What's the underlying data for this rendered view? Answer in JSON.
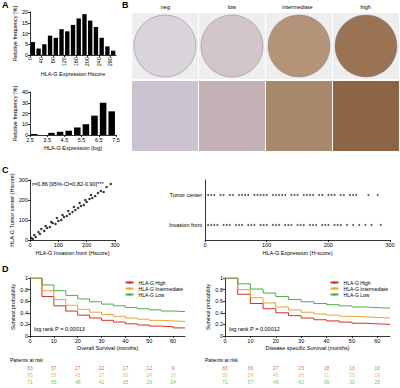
{
  "panel_labels": [
    "A",
    "B",
    "C",
    "D"
  ],
  "image_panel": {
    "labels": [
      "neg",
      "low",
      "intermediate",
      "high"
    ]
  },
  "chart_data": [
    {
      "type": "histogram",
      "xlabel": "HLA-G Expression Hscore",
      "ylabel": "Relative frequency [%]",
      "bins": [
        0,
        20,
        40,
        60,
        80,
        100,
        120,
        140,
        160,
        180,
        200,
        220,
        240,
        260,
        280,
        300
      ],
      "counts": [
        6,
        3,
        5,
        9,
        8,
        12,
        11,
        14,
        17,
        19,
        16,
        13,
        8,
        4,
        2
      ],
      "color": "#000000",
      "xlim": [
        0,
        300
      ],
      "xticks": [
        0,
        40,
        80,
        120,
        160,
        200,
        240,
        280
      ],
      "ylim": [
        0,
        20
      ],
      "yticks": [
        0,
        5,
        10,
        15,
        20
      ],
      "grid": false
    },
    {
      "type": "histogram",
      "xlabel": "HLA-G Expression (log)",
      "ylabel": "Relative frequency [%]",
      "bins": [
        2.5,
        3,
        3.5,
        4,
        4.5,
        5,
        5.5,
        6,
        6.5,
        7,
        7.5
      ],
      "counts": [
        1,
        0,
        2,
        3,
        4,
        7,
        10,
        18,
        30,
        22
      ],
      "color": "#000000",
      "xlim": [
        2.5,
        7.5
      ],
      "xticks": [
        2.5,
        3.5,
        4.5,
        5.5,
        6.5,
        7.5
      ],
      "ylim": [
        0,
        40
      ],
      "yticks": [
        0,
        10,
        20,
        30,
        40
      ],
      "grid": false
    },
    {
      "type": "scatter",
      "xlabel": "HLA-G Invasion front (Hscore)",
      "ylabel": "HLA-G Tumor center (Hscore)",
      "annotation": "r=0.86 [95%-CI=0.82-0.90]***",
      "color": "#000000",
      "marker": "circle",
      "x": [
        5,
        10,
        15,
        20,
        30,
        35,
        40,
        50,
        55,
        60,
        70,
        75,
        80,
        90,
        95,
        100,
        110,
        115,
        120,
        130,
        135,
        140,
        150,
        155,
        160,
        170,
        175,
        180,
        190,
        195,
        200,
        210,
        215,
        220,
        230,
        240,
        250,
        260,
        270,
        285
      ],
      "values": [
        10,
        5,
        25,
        15,
        40,
        30,
        55,
        45,
        70,
        60,
        65,
        90,
        85,
        80,
        110,
        95,
        100,
        125,
        115,
        120,
        145,
        130,
        140,
        165,
        150,
        160,
        185,
        170,
        175,
        200,
        190,
        205,
        225,
        210,
        220,
        235,
        245,
        240,
        265,
        280
      ],
      "xlim": [
        0,
        300
      ],
      "xticks": [
        0,
        100,
        200,
        300
      ],
      "ylim": [
        0,
        300
      ],
      "yticks": [
        0,
        100,
        200,
        300
      ],
      "grid": false
    },
    {
      "type": "strip",
      "xlabel": "HLA-G Expression (H-score)",
      "color": "#333333",
      "marker": "circle",
      "categories": [
        "Tumor center",
        "Invasion front"
      ],
      "values": [
        [
          10,
          5,
          25,
          15,
          40,
          30,
          55,
          45,
          70,
          60,
          65,
          90,
          85,
          80,
          110,
          95,
          100,
          125,
          115,
          120,
          145,
          130,
          140,
          165,
          150,
          160,
          185,
          170,
          175,
          200,
          190,
          205,
          225,
          210,
          220,
          235,
          245,
          240,
          265,
          280
        ],
        [
          5,
          10,
          15,
          20,
          30,
          35,
          40,
          50,
          55,
          60,
          70,
          75,
          80,
          90,
          95,
          100,
          110,
          115,
          120,
          130,
          135,
          140,
          150,
          155,
          160,
          170,
          175,
          180,
          190,
          195,
          200,
          210,
          215,
          220,
          230,
          240,
          250,
          260,
          270,
          285
        ]
      ],
      "xlim": [
        0,
        300
      ],
      "xticks": [
        0,
        100,
        200,
        300
      ],
      "grid": false
    },
    {
      "type": "line",
      "line_style": "step",
      "xlabel": "Overall Survival (months)",
      "ylabel": "Survival probability",
      "annotation": "log rank P = 0.00013",
      "legend": "top-right",
      "x": [
        0,
        5,
        10,
        15,
        20,
        25,
        30,
        35,
        40,
        45,
        50,
        55,
        60,
        65
      ],
      "series": [
        {
          "name": "HLA-G High",
          "color": "#d7301f",
          "values": [
            1.0,
            0.68,
            0.52,
            0.43,
            0.36,
            0.31,
            0.27,
            0.24,
            0.21,
            0.19,
            0.17,
            0.16,
            0.14,
            0.13
          ]
        },
        {
          "name": "HLA-G Intermediate",
          "color": "#f0a030",
          "values": [
            1.0,
            0.78,
            0.63,
            0.53,
            0.46,
            0.41,
            0.37,
            0.34,
            0.31,
            0.29,
            0.27,
            0.26,
            0.25,
            0.24
          ]
        },
        {
          "name": "HLA-G Low",
          "color": "#4daf4a",
          "values": [
            1.0,
            0.88,
            0.78,
            0.7,
            0.64,
            0.59,
            0.55,
            0.52,
            0.49,
            0.47,
            0.45,
            0.43,
            0.42,
            0.41
          ]
        }
      ],
      "xlim": [
        0,
        65
      ],
      "xticks": [
        0,
        10,
        20,
        30,
        40,
        50,
        60
      ],
      "ylim": [
        0,
        1
      ],
      "yticks": [
        0,
        0.2,
        0.4,
        0.6,
        0.8,
        1
      ],
      "grid": false,
      "at_risk": {
        "title": "Patients at risk",
        "x": [
          0,
          10,
          20,
          30,
          40,
          50,
          60
        ],
        "rows": [
          [
            83,
            37,
            27,
            22,
            17,
            12,
            9
          ],
          [
            95,
            58,
            45,
            37,
            30,
            24,
            18
          ],
          [
            71,
            56,
            48,
            41,
            35,
            29,
            24
          ]
        ]
      }
    },
    {
      "type": "line",
      "line_style": "step",
      "xlabel": "Disease specific Survival (months)",
      "ylabel": "Survival probability",
      "annotation": "log rank P = 0.00012",
      "legend": "top-right",
      "x": [
        0,
        5,
        10,
        15,
        20,
        25,
        30,
        35,
        40,
        45,
        50,
        55,
        60,
        65
      ],
      "series": [
        {
          "name": "HLA-G High",
          "color": "#d7301f",
          "values": [
            1.0,
            0.72,
            0.56,
            0.47,
            0.4,
            0.35,
            0.31,
            0.28,
            0.26,
            0.24,
            0.22,
            0.21,
            0.2,
            0.19
          ]
        },
        {
          "name": "HLA-G Intermediate",
          "color": "#f0a030",
          "values": [
            1.0,
            0.8,
            0.66,
            0.57,
            0.5,
            0.45,
            0.41,
            0.38,
            0.36,
            0.34,
            0.33,
            0.32,
            0.31,
            0.3
          ]
        },
        {
          "name": "HLA-G Low",
          "color": "#4daf4a",
          "values": [
            1.0,
            0.9,
            0.81,
            0.74,
            0.68,
            0.63,
            0.59,
            0.56,
            0.54,
            0.52,
            0.5,
            0.49,
            0.48,
            0.47
          ]
        }
      ],
      "xlim": [
        0,
        65
      ],
      "xticks": [
        0,
        10,
        20,
        30,
        40,
        50,
        60
      ],
      "ylim": [
        0,
        1
      ],
      "yticks": [
        0,
        0.2,
        0.4,
        0.6,
        0.8,
        1
      ],
      "grid": false,
      "at_risk": {
        "title": "Patients at risk",
        "x": [
          0,
          10,
          20,
          30,
          40,
          50,
          60
        ],
        "rows": [
          [
            83,
            36,
            27,
            23,
            18,
            13,
            10
          ],
          [
            95,
            59,
            46,
            38,
            31,
            25,
            19
          ],
          [
            71,
            57,
            49,
            42,
            36,
            30,
            25
          ]
        ]
      }
    }
  ]
}
